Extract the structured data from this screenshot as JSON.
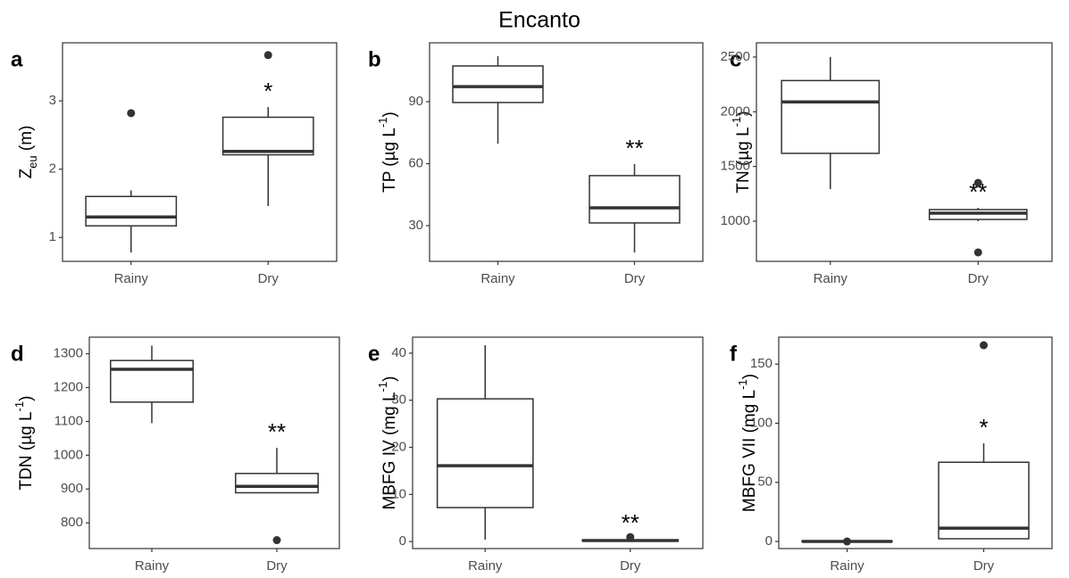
{
  "title": "Encanto",
  "chart_data": [
    {
      "type": "box",
      "label": "a",
      "ylabel": [
        {
          "text": "Z"
        },
        {
          "text": "eu",
          "sub": true
        },
        {
          "text": " (m)"
        }
      ],
      "categories": [
        "Rainy",
        "Dry"
      ],
      "whislo": [
        0.78,
        1.46
      ],
      "q1": [
        1.17,
        2.21
      ],
      "median": [
        1.3,
        2.26
      ],
      "q3": [
        1.6,
        2.76
      ],
      "whishi": [
        1.69,
        2.91
      ],
      "outliers": [
        [
          2.82
        ],
        [
          3.67
        ]
      ],
      "annotations": [
        null,
        "*"
      ],
      "ylim": [
        0.65,
        3.85
      ],
      "yticks": [
        1,
        2,
        3
      ]
    },
    {
      "type": "box",
      "label": "b",
      "ylabel": [
        {
          "text": "TP (µg L"
        },
        {
          "text": "-1",
          "sup": true
        },
        {
          "text": ")"
        }
      ],
      "categories": [
        "Rainy",
        "Dry"
      ],
      "whislo": [
        69.7,
        17
      ],
      "q1": [
        89.6,
        31.3
      ],
      "median": [
        97.3,
        38.6
      ],
      "q3": [
        107.3,
        54.2
      ],
      "whishi": [
        112,
        59.8
      ],
      "outliers": [
        [],
        []
      ],
      "annotations": [
        null,
        "**"
      ],
      "ylim": [
        12.7,
        118.5
      ],
      "yticks": [
        30,
        60,
        90
      ]
    },
    {
      "type": "box",
      "label": "c",
      "ylabel": [
        {
          "text": "TN (µg L"
        },
        {
          "text": "-1",
          "sup": true
        },
        {
          "text": ")"
        }
      ],
      "categories": [
        "Rainy",
        "Dry"
      ],
      "whislo": [
        1293,
        1000
      ],
      "q1": [
        1620,
        1016
      ],
      "median": [
        2090,
        1073
      ],
      "q3": [
        2285,
        1106
      ],
      "whishi": [
        2500,
        1122
      ],
      "outliers": [
        [],
        [
          715,
          1350
        ]
      ],
      "annotations": [
        null,
        "**"
      ],
      "ylim": [
        633,
        2630
      ],
      "yticks": [
        1000,
        1500,
        2000,
        2500
      ]
    },
    {
      "type": "box",
      "label": "d",
      "ylabel": [
        {
          "text": "TDN (µg L"
        },
        {
          "text": "-1",
          "sup": true
        },
        {
          "text": ")"
        }
      ],
      "categories": [
        "Rainy",
        "Dry"
      ],
      "whislo": [
        1095,
        889
      ],
      "q1": [
        1157,
        889
      ],
      "median": [
        1254,
        908
      ],
      "q3": [
        1280,
        946
      ],
      "whishi": [
        1324,
        1022
      ],
      "outliers": [
        [],
        [
          749
        ]
      ],
      "annotations": [
        null,
        "**"
      ],
      "ylim": [
        724,
        1349
      ],
      "yticks": [
        800,
        900,
        1000,
        1100,
        1200,
        1300
      ]
    },
    {
      "type": "box",
      "label": "e",
      "ylabel": [
        {
          "text": "MBFG IV (mg L"
        },
        {
          "text": "-1",
          "sup": true
        },
        {
          "text": ")"
        }
      ],
      "categories": [
        "Rainy",
        "Dry"
      ],
      "whislo": [
        0.4,
        0
      ],
      "q1": [
        7.2,
        0.1
      ],
      "median": [
        16.1,
        0.2
      ],
      "q3": [
        30.3,
        0.35
      ],
      "whishi": [
        41.7,
        0.6
      ],
      "outliers": [
        [],
        [
          0.95
        ]
      ],
      "annotations": [
        null,
        "**"
      ],
      "ylim": [
        -1.5,
        43.4
      ],
      "yticks": [
        0,
        10,
        20,
        30,
        40
      ]
    },
    {
      "type": "box",
      "label": "f",
      "ylabel": [
        {
          "text": "MBFG VII (mg L"
        },
        {
          "text": "-1",
          "sup": true
        },
        {
          "text": ")"
        }
      ],
      "categories": [
        "Rainy",
        "Dry"
      ],
      "whislo": [
        0,
        2.3
      ],
      "q1": [
        0,
        2.3
      ],
      "median": [
        0,
        11.3
      ],
      "q3": [
        0.3,
        67
      ],
      "whishi": [
        0.5,
        83
      ],
      "outliers": [
        [
          0
        ],
        [
          166
        ]
      ],
      "annotations": [
        null,
        "*"
      ],
      "ylim": [
        -6,
        172.8
      ],
      "yticks": [
        0,
        50,
        100,
        150
      ]
    }
  ]
}
